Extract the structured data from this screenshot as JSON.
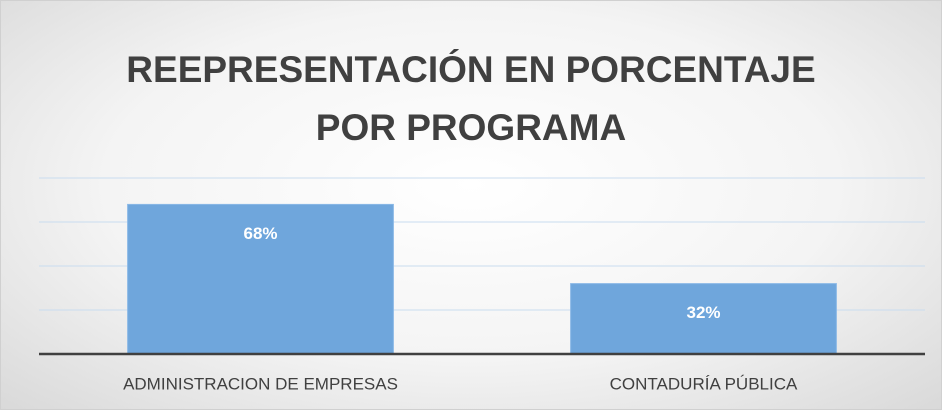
{
  "chart_data": {
    "type": "bar",
    "title": "REEPRESENTACIÓN EN PORCENTAJE POR PROGRAMA",
    "categories": [
      "ADMINISTRACION DE EMPRESAS",
      "CONTADURÍA PÚBLICA"
    ],
    "values": [
      68,
      32
    ],
    "value_labels": [
      "68%",
      "32%"
    ],
    "color": "#6fa6dc",
    "ylim": [
      0,
      80
    ],
    "yticks": [
      0,
      20,
      40,
      60,
      80
    ],
    "grid": true
  }
}
